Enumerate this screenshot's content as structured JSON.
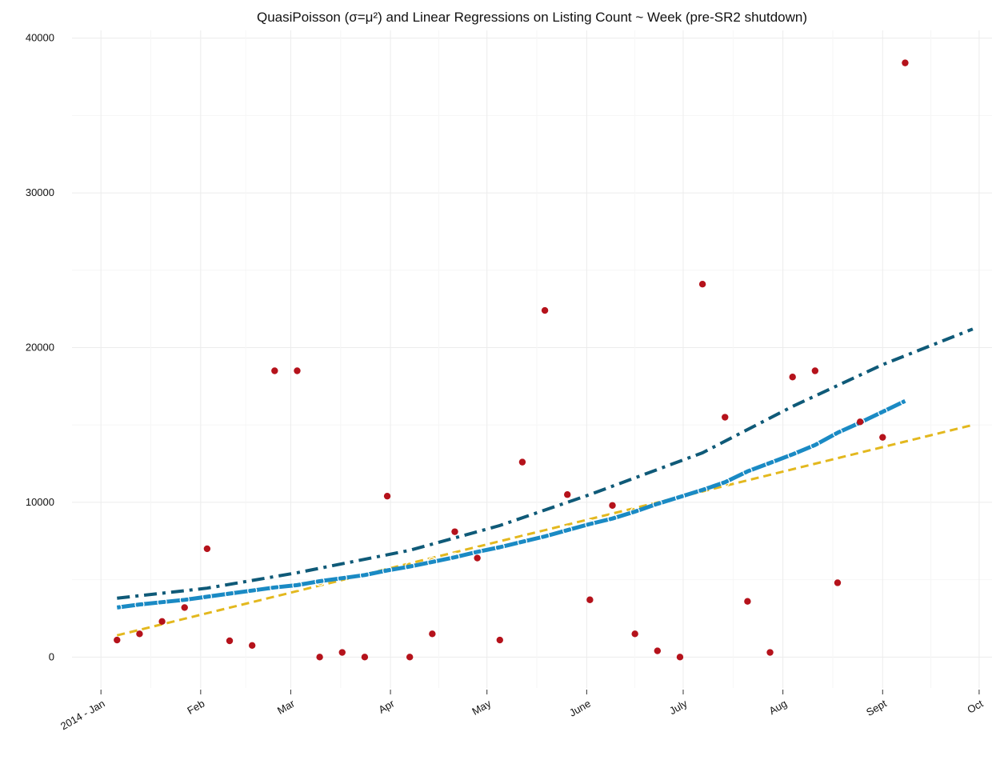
{
  "chart_data": {
    "type": "scatter",
    "title": "QuasiPoisson (σ=μ²) and Linear Regressions on Listing Count ~ Week (pre-SR2 shutdown)",
    "xlabel": "",
    "ylabel": "",
    "x_axis": {
      "type": "date",
      "range": [
        "2013-12-23",
        "2014-10-05"
      ],
      "ticks": [
        {
          "date": "2014-01-01",
          "label": "2014 - Jan"
        },
        {
          "date": "2014-02-01",
          "label": "Feb"
        },
        {
          "date": "2014-03-01",
          "label": "Mar"
        },
        {
          "date": "2014-04-01",
          "label": "Apr"
        },
        {
          "date": "2014-05-01",
          "label": "May"
        },
        {
          "date": "2014-06-01",
          "label": "June"
        },
        {
          "date": "2014-07-01",
          "label": "July"
        },
        {
          "date": "2014-08-01",
          "label": "Aug"
        },
        {
          "date": "2014-09-01",
          "label": "Sept"
        },
        {
          "date": "2014-10-01",
          "label": "Oct"
        }
      ]
    },
    "y_axis": {
      "range": [
        -2000,
        40500
      ],
      "ticks": [
        0,
        10000,
        20000,
        30000,
        40000
      ]
    },
    "grid": true,
    "legend": "none",
    "colors": {
      "observed": "#b5121b",
      "quasipoisson_fit": "#1a8ac4",
      "linear_fit": "#e3b81e",
      "upper_fit": "#0f5a78"
    },
    "series": [
      {
        "kind": "observed-points",
        "x": [
          "2014-01-06",
          "2014-01-13",
          "2014-01-20",
          "2014-01-27",
          "2014-02-03",
          "2014-02-10",
          "2014-02-17",
          "2014-02-24",
          "2014-03-03",
          "2014-03-10",
          "2014-03-17",
          "2014-03-24",
          "2014-03-31",
          "2014-04-07",
          "2014-04-14",
          "2014-04-21",
          "2014-04-28",
          "2014-05-05",
          "2014-05-12",
          "2014-05-19",
          "2014-05-26",
          "2014-06-02",
          "2014-06-09",
          "2014-06-16",
          "2014-06-23",
          "2014-06-30",
          "2014-07-07",
          "2014-07-14",
          "2014-07-21",
          "2014-07-28",
          "2014-08-04",
          "2014-08-11",
          "2014-08-18",
          "2014-08-25",
          "2014-09-01",
          "2014-09-08",
          "2014-09-15",
          "2014-09-22",
          "2014-09-29"
        ],
        "y": [
          1100,
          1500,
          2300,
          3200,
          7000,
          1050,
          750,
          18500,
          18500,
          0,
          300,
          0,
          10400,
          0,
          1500,
          8100,
          6400,
          1100,
          12600,
          22400,
          10500,
          3700,
          9800,
          1500,
          400,
          0,
          24100,
          15500,
          3600,
          300,
          18100,
          18500,
          4800,
          15200,
          14200,
          38400,
          null,
          null,
          null
        ]
      },
      {
        "kind": "quasipoisson-fit",
        "x": [
          "2014-01-06",
          "2014-01-13",
          "2014-01-20",
          "2014-01-27",
          "2014-02-03",
          "2014-02-10",
          "2014-02-17",
          "2014-02-24",
          "2014-03-03",
          "2014-03-10",
          "2014-03-17",
          "2014-03-24",
          "2014-03-31",
          "2014-04-07",
          "2014-04-14",
          "2014-04-21",
          "2014-04-28",
          "2014-05-05",
          "2014-05-12",
          "2014-05-19",
          "2014-05-26",
          "2014-06-02",
          "2014-06-09",
          "2014-06-16",
          "2014-06-23",
          "2014-06-30",
          "2014-07-07",
          "2014-07-14",
          "2014-07-21",
          "2014-07-28",
          "2014-08-04",
          "2014-08-11",
          "2014-08-18",
          "2014-08-25",
          "2014-09-01",
          "2014-09-08",
          "2014-09-15",
          "2014-09-22",
          "2014-09-29"
        ],
        "y": [
          3200,
          3400,
          3550,
          3700,
          3900,
          4100,
          4300,
          4500,
          4650,
          4900,
          5100,
          5300,
          5600,
          5850,
          6150,
          6450,
          6800,
          7100,
          7450,
          7800,
          8200,
          8600,
          8950,
          9400,
          9900,
          10350,
          10800,
          11300,
          12000,
          12550,
          13100,
          13700,
          14500,
          15150,
          15850,
          16550,
          null,
          null,
          null
        ]
      },
      {
        "kind": "linear-fit",
        "x": [
          "2014-01-06",
          "2014-09-29"
        ],
        "y": [
          1400,
          15000
        ]
      },
      {
        "kind": "upper-fit",
        "x": [
          "2014-01-06",
          "2014-02-03",
          "2014-03-03",
          "2014-04-07",
          "2014-05-05",
          "2014-06-02",
          "2014-07-07",
          "2014-08-04",
          "2014-09-01",
          "2014-09-29"
        ],
        "y": [
          3800,
          4450,
          5450,
          6900,
          8500,
          10500,
          13200,
          16200,
          18900,
          21200
        ]
      }
    ]
  }
}
